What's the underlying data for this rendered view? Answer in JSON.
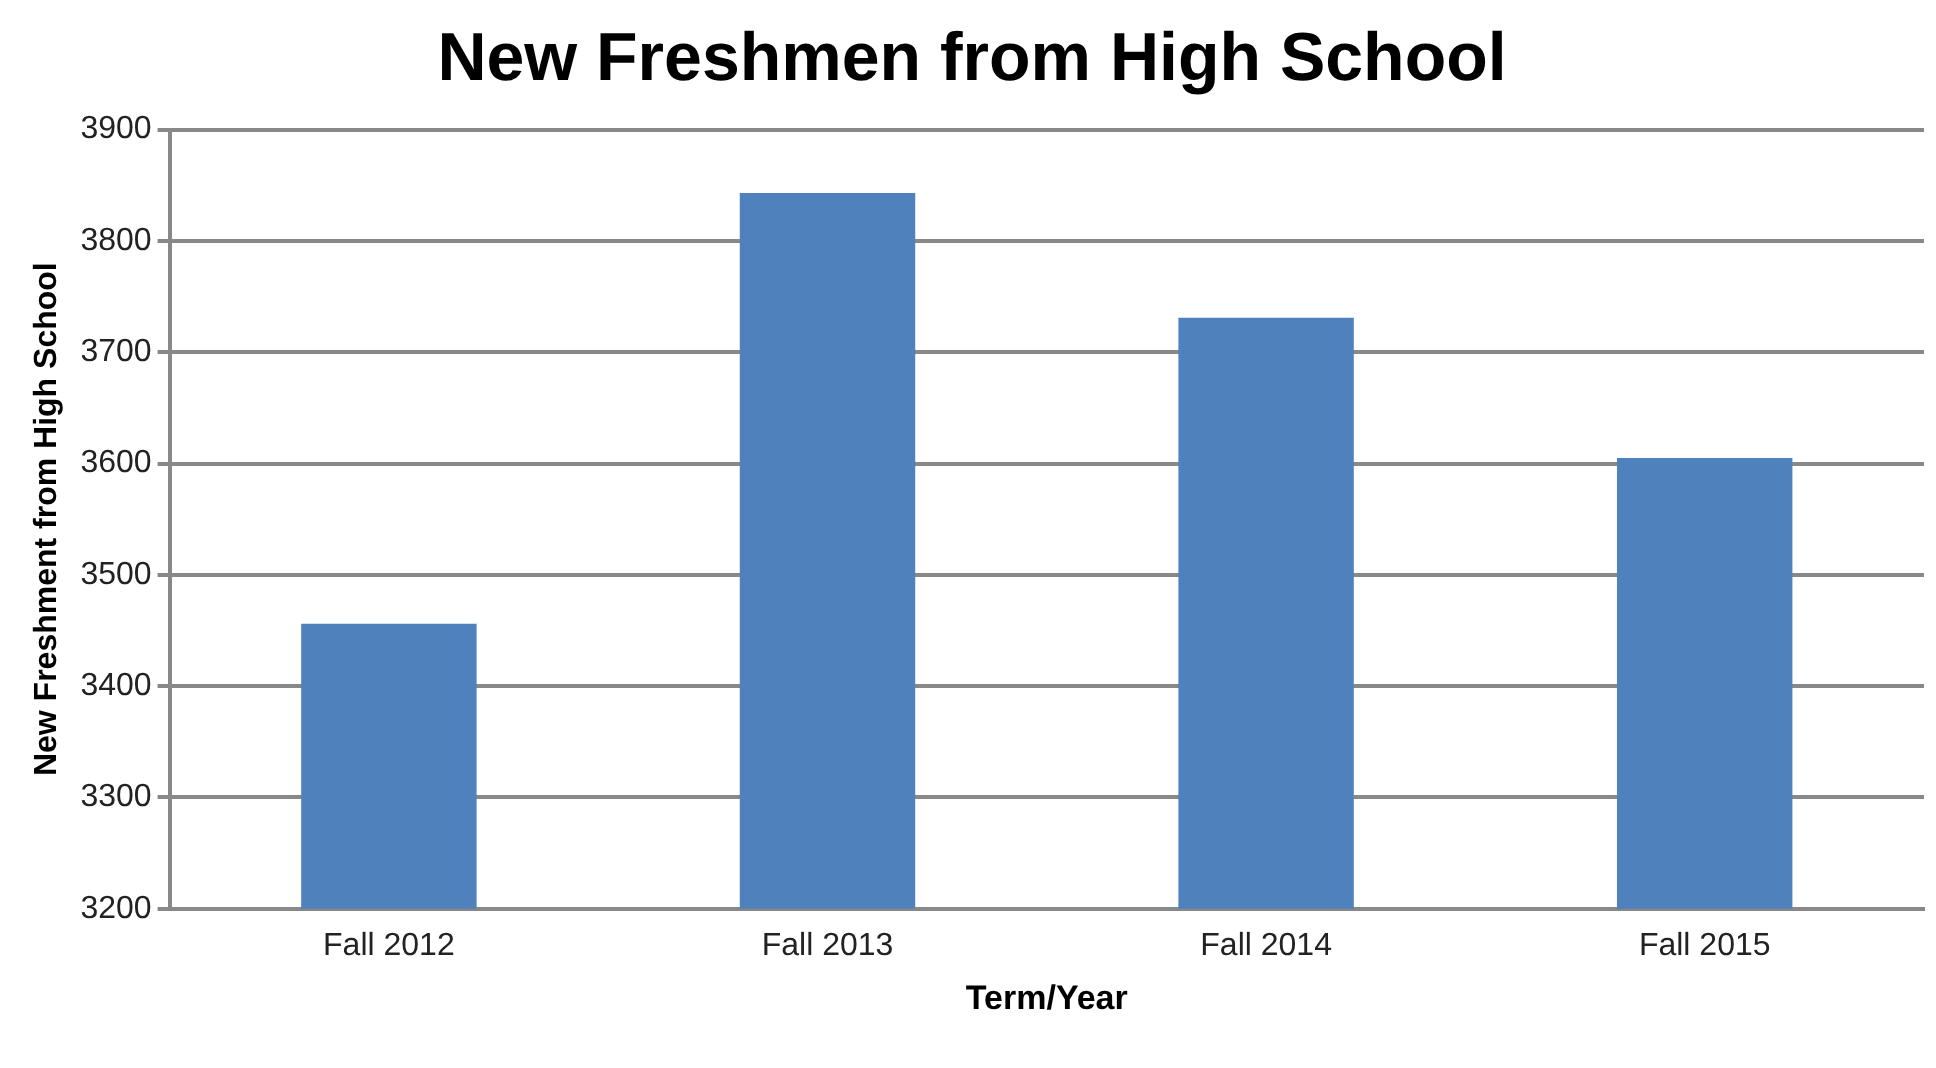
{
  "chart_data": {
    "type": "bar",
    "title": "New Freshmen from High School",
    "xlabel": "Term/Year",
    "ylabel": "New Freshment from High School",
    "categories": [
      "Fall 2012",
      "Fall 2013",
      "Fall 2014",
      "Fall 2015"
    ],
    "values": [
      3456,
      3843,
      3731,
      3605
    ],
    "color": "#4f81bd",
    "ylim": [
      3200,
      3900
    ],
    "yticks": [
      3200,
      3300,
      3400,
      3500,
      3600,
      3700,
      3800,
      3900
    ],
    "grid": "y",
    "legend": false
  }
}
